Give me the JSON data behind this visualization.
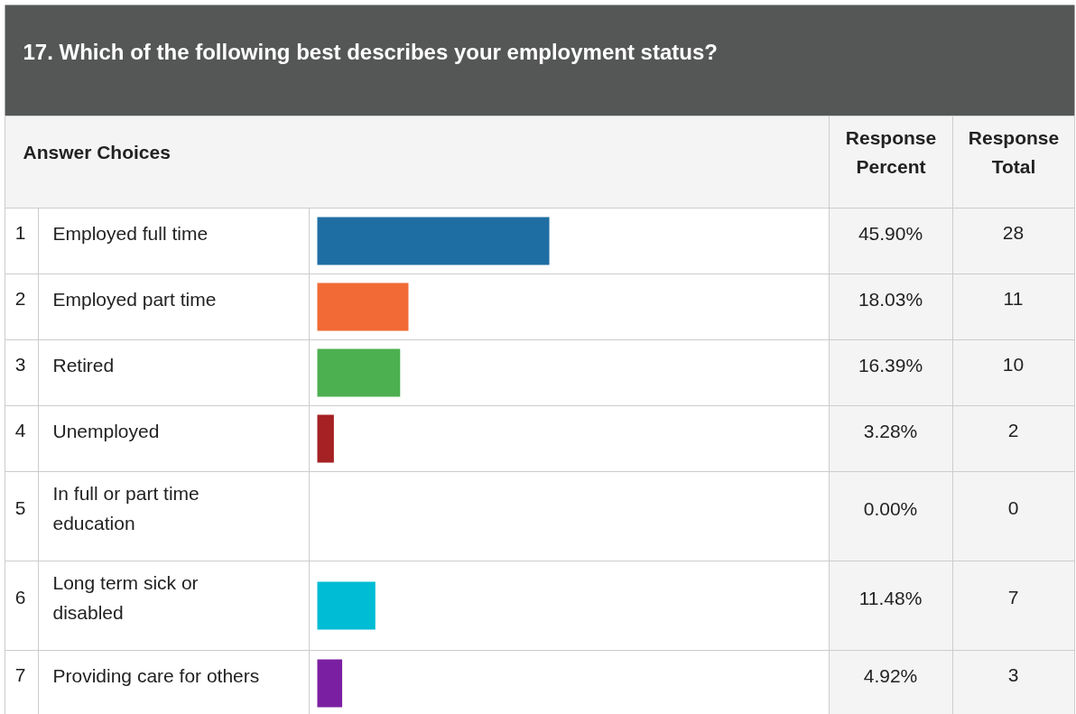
{
  "chart_data": {
    "type": "bar",
    "orientation": "horizontal",
    "title": "17. Which of the following best describes your employment status?",
    "categories": [
      "Employed full time",
      "Employed part time",
      "Retired",
      "Unemployed",
      "In full or part time education",
      "Long term sick or disabled",
      "Providing care for others"
    ],
    "values": [
      45.9,
      18.03,
      16.39,
      3.28,
      0.0,
      11.48,
      4.92
    ],
    "colors": [
      "#1f6ea3",
      "#f26a35",
      "#4caf50",
      "#a52123",
      "#9e9e9e",
      "#00bcd4",
      "#7b1fa2"
    ],
    "value_labels": [
      "45.90%",
      "18.03%",
      "16.39%",
      "3.28%",
      "0.00%",
      "11.48%",
      "4.92%"
    ],
    "annotations": [
      "Answer Choices",
      "Response Percent",
      "Response Total",
      "1",
      "2",
      "3",
      "4",
      "5",
      "6",
      "7",
      "28",
      "11",
      "10",
      "2",
      "0",
      "7",
      "3"
    ]
  }
}
